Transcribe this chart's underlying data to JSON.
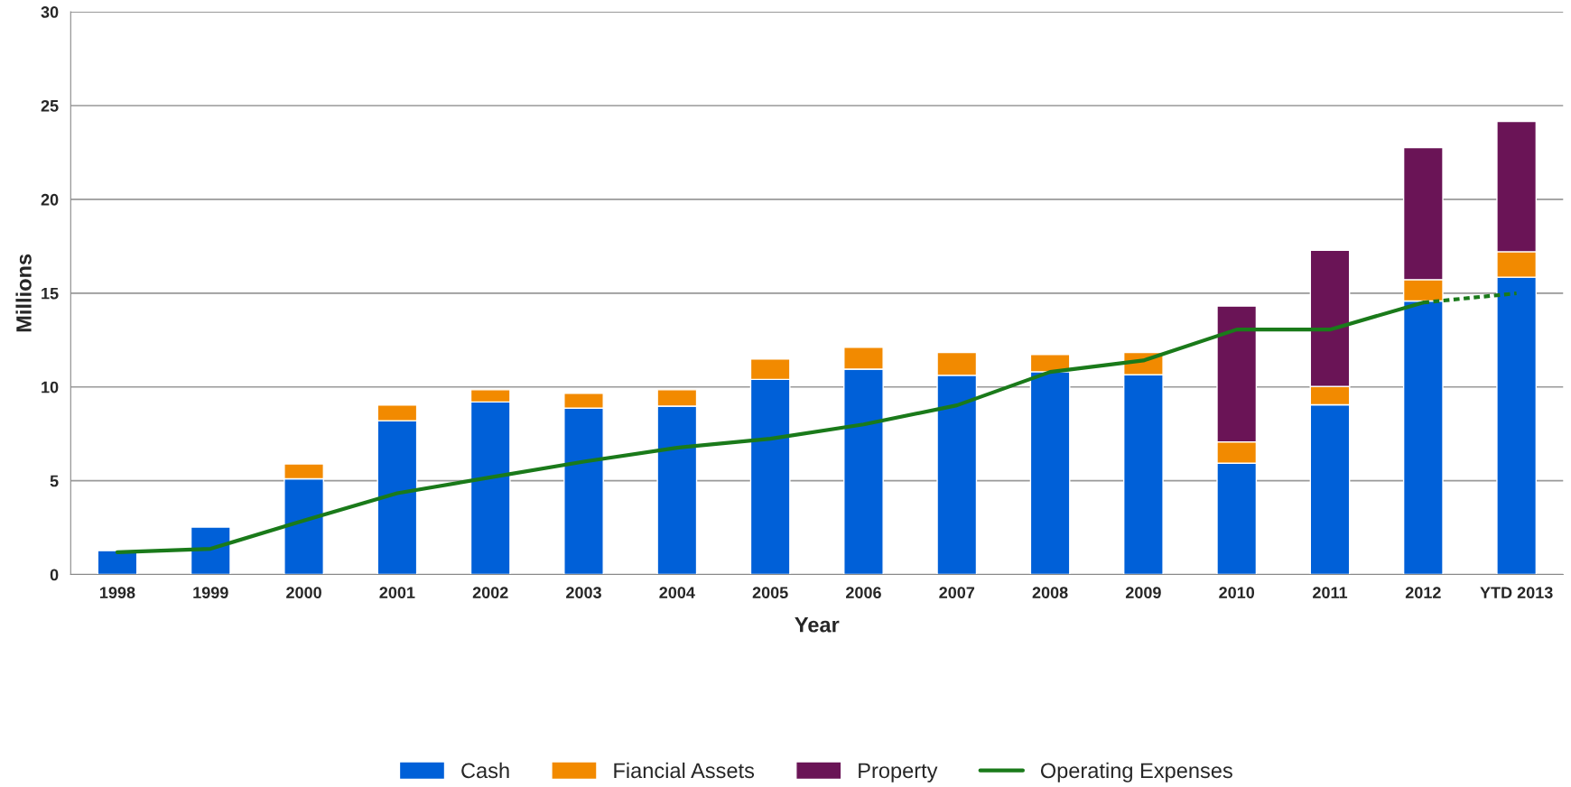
{
  "chart_data": {
    "type": "bar",
    "stacked": true,
    "xlabel": "Year",
    "ylabel": "Millions",
    "categories": [
      "1998",
      "1999",
      "2000",
      "2001",
      "2002",
      "2003",
      "2004",
      "2005",
      "2006",
      "2007",
      "2008",
      "2009",
      "2010",
      "2011",
      "2012",
      "YTD 2013"
    ],
    "series": [
      {
        "name": "Cash",
        "color": "#0060d8",
        "values": [
          1.27,
          2.53,
          5.1,
          8.2,
          9.2,
          8.87,
          8.98,
          10.4,
          10.95,
          10.62,
          10.81,
          10.65,
          5.93,
          9.05,
          14.58,
          15.85
        ]
      },
      {
        "name": "Fiancial Assets",
        "color": "#f28a00",
        "values": [
          null,
          null,
          0.8,
          0.83,
          0.65,
          0.79,
          0.87,
          1.09,
          1.16,
          1.22,
          0.92,
          1.19,
          1.14,
          0.98,
          1.14,
          1.36
        ]
      },
      {
        "name": "Property",
        "color": "#6a1456",
        "values": [
          null,
          null,
          null,
          null,
          null,
          null,
          null,
          null,
          null,
          null,
          null,
          null,
          7.24,
          7.26,
          7.04,
          6.94
        ]
      },
      {
        "name": "Operating Expenses",
        "type": "line",
        "color": "#1a7a1a",
        "line_style": "solid",
        "values": [
          1.19,
          1.37,
          2.88,
          4.33,
          5.18,
          6.02,
          6.76,
          7.24,
          8.0,
          9.02,
          10.8,
          11.41,
          13.06,
          13.06,
          14.5,
          null
        ]
      },
      {
        "type": "line",
        "color": "#1a7a1a",
        "line_style": "dashed",
        "values": [
          null,
          null,
          null,
          null,
          null,
          null,
          null,
          null,
          null,
          null,
          null,
          null,
          null,
          null,
          14.5,
          14.99
        ]
      }
    ],
    "ylim": [
      0,
      30
    ],
    "yticks": [
      0,
      5,
      10,
      15,
      20,
      25,
      30
    ],
    "grid": "y",
    "legend": "bottom"
  }
}
